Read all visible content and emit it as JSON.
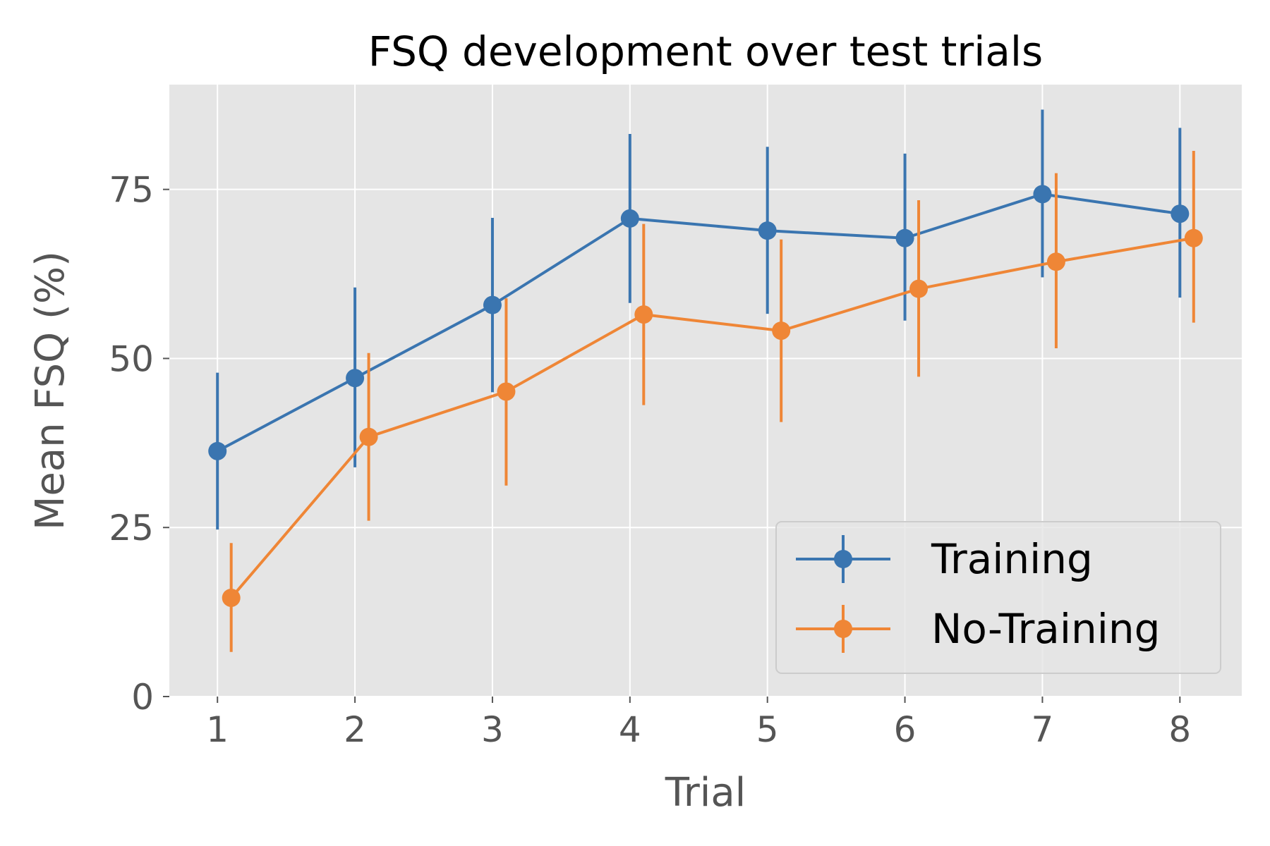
{
  "chart_data": {
    "type": "line",
    "title": "FSQ development over test trials",
    "xlabel": "Trial",
    "ylabel": "Mean FSQ (%)",
    "x": [
      1,
      2,
      3,
      4,
      5,
      6,
      7,
      8
    ],
    "xticks": [
      "1",
      "2",
      "3",
      "4",
      "5",
      "6",
      "7",
      "8"
    ],
    "yticks": [
      "0",
      "25",
      "50",
      "75"
    ],
    "ytick_values": [
      0,
      25,
      50,
      75
    ],
    "xlim": [
      0.65,
      8.45
    ],
    "ylim": [
      0,
      90.5
    ],
    "grid": true,
    "legend_position": "lower-right",
    "series": [
      {
        "name": "Training",
        "color": "#3a75b0",
        "x_offset": 0,
        "values": [
          36.3,
          47.1,
          57.9,
          70.7,
          68.9,
          67.8,
          74.3,
          71.4
        ],
        "err_low": [
          24.7,
          33.9,
          45.0,
          58.2,
          56.6,
          55.6,
          62.0,
          59.0
        ],
        "err_high": [
          47.9,
          60.5,
          70.8,
          83.2,
          81.3,
          80.3,
          86.8,
          84.1
        ]
      },
      {
        "name": "No-Training",
        "color": "#ef8636",
        "x_offset": 0.1,
        "values": [
          14.6,
          38.4,
          45.1,
          56.5,
          54.1,
          60.3,
          64.3,
          67.8
        ],
        "err_low": [
          6.6,
          26.0,
          31.2,
          43.1,
          40.6,
          47.3,
          51.5,
          55.3
        ],
        "err_high": [
          22.7,
          50.8,
          58.9,
          69.9,
          67.6,
          73.4,
          77.4,
          80.7
        ]
      }
    ]
  }
}
